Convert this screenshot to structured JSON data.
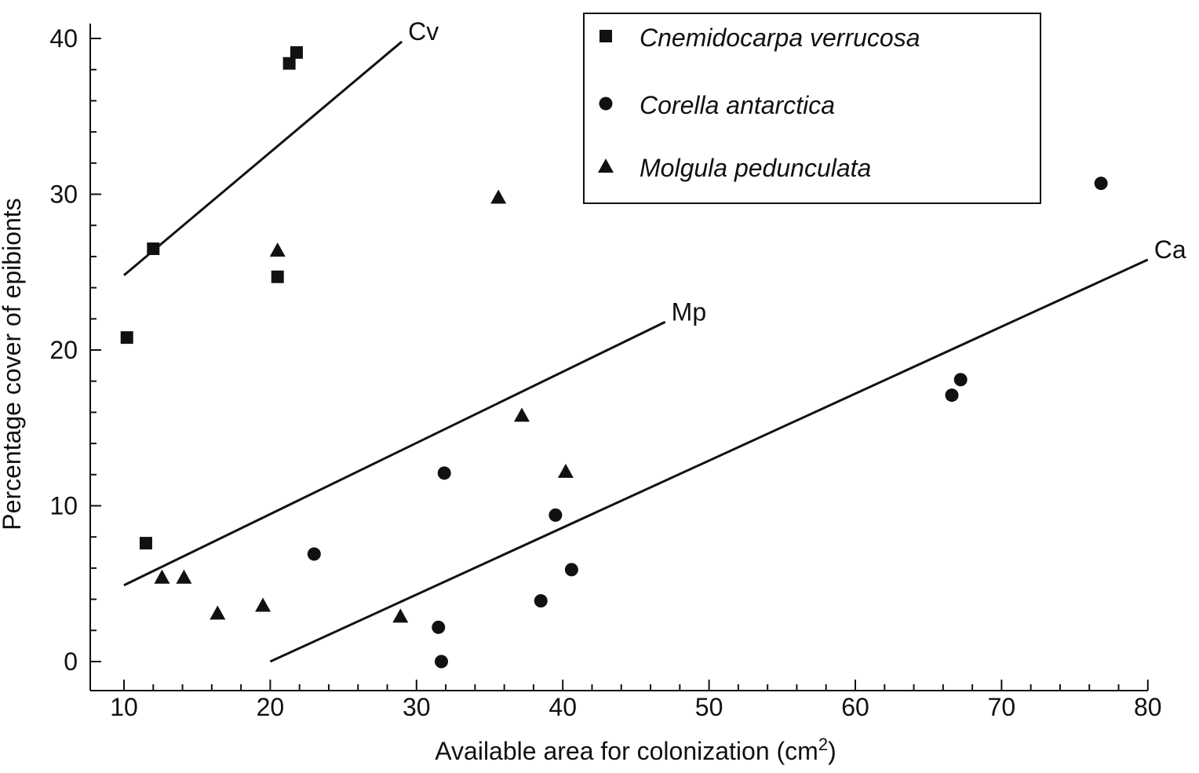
{
  "chart_data": {
    "type": "scatter",
    "title": "",
    "xlabel": "Available area for colonization (cm",
    "xlabel_sup": "2",
    "xlabel_suffix": ")",
    "ylabel": "Percentage cover of epibionts",
    "xlim": [
      8,
      80
    ],
    "ylim": [
      -1.5,
      41
    ],
    "xticks": [
      10,
      20,
      30,
      40,
      50,
      60,
      70,
      80
    ],
    "yticks": [
      0,
      10,
      20,
      30,
      40
    ],
    "legend_position": "top-right",
    "color": "#111111",
    "series": [
      {
        "name": "Cnemidocarpa verrucosa",
        "marker": "square",
        "points": [
          [
            10.2,
            20.8
          ],
          [
            11.5,
            7.6
          ],
          [
            12.0,
            26.5
          ],
          [
            20.5,
            24.7
          ],
          [
            21.3,
            38.4
          ],
          [
            21.8,
            39.1
          ]
        ]
      },
      {
        "name": "Corella antarctica",
        "marker": "circle",
        "points": [
          [
            23.0,
            6.9
          ],
          [
            31.5,
            2.2
          ],
          [
            31.7,
            0.0
          ],
          [
            31.9,
            12.1
          ],
          [
            38.5,
            3.9
          ],
          [
            39.5,
            9.4
          ],
          [
            40.6,
            5.9
          ],
          [
            66.6,
            17.1
          ],
          [
            67.2,
            18.1
          ],
          [
            76.8,
            30.7
          ]
        ]
      },
      {
        "name": "Molgula pedunculata",
        "marker": "triangle",
        "points": [
          [
            12.6,
            5.4
          ],
          [
            14.1,
            5.4
          ],
          [
            16.4,
            3.1
          ],
          [
            19.5,
            3.6
          ],
          [
            20.5,
            26.4
          ],
          [
            28.9,
            2.9
          ],
          [
            35.6,
            29.8
          ],
          [
            37.2,
            15.8
          ],
          [
            40.2,
            12.2
          ]
        ]
      }
    ],
    "regression_lines": [
      {
        "label": "Cv",
        "x": [
          10,
          29
        ],
        "y": [
          24.8,
          39.8
        ]
      },
      {
        "label": "Mp",
        "x": [
          10,
          47
        ],
        "y": [
          4.9,
          21.8
        ]
      },
      {
        "label": "Ca",
        "x": [
          20,
          80
        ],
        "y": [
          0.0,
          25.8
        ]
      }
    ]
  }
}
